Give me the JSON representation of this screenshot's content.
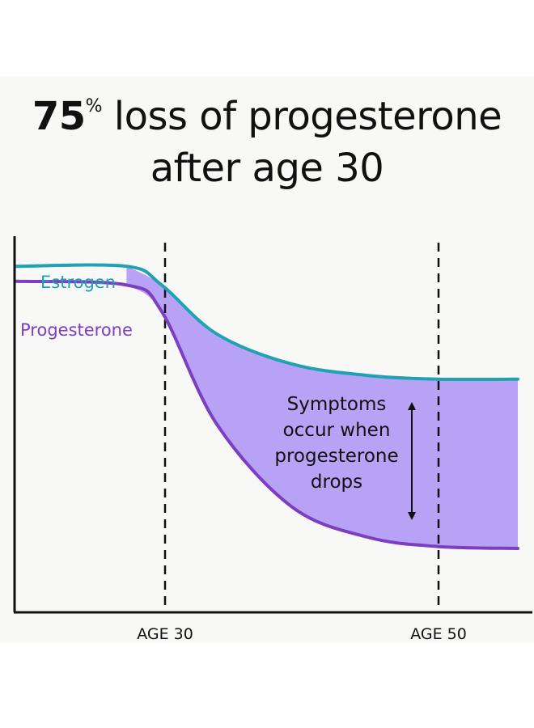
{
  "title": {
    "number": "75",
    "percent": "%",
    "line1_rest": " loss of progesterone",
    "line2": "after age 30"
  },
  "colors": {
    "estrogen": "#1fa3b0",
    "progesterone": "#7b3fbf",
    "fill": "#b8a2f5",
    "axis": "#111111",
    "background": "#f8f8f6"
  },
  "chart_data": {
    "type": "line",
    "xlabel": "",
    "ylabel": "",
    "x_markers": [
      "AGE 30",
      "AGE 50"
    ],
    "series": [
      {
        "name": "Estrogen",
        "color": "#1fa3b0",
        "x": [
          0,
          0.22,
          0.29,
          0.4,
          0.55,
          0.7,
          0.84,
          1.0
        ],
        "y": [
          0.92,
          0.92,
          0.87,
          0.74,
          0.66,
          0.63,
          0.62,
          0.62
        ]
      },
      {
        "name": "Progesterone",
        "color": "#7b3fbf",
        "x": [
          0,
          0.22,
          0.29,
          0.4,
          0.55,
          0.7,
          0.84,
          1.0
        ],
        "y": [
          0.88,
          0.87,
          0.8,
          0.5,
          0.28,
          0.2,
          0.175,
          0.17
        ]
      }
    ],
    "annotation": {
      "lines": [
        "Symptoms",
        "occur when",
        "progesterone",
        "drops"
      ],
      "arrow": "double-vertical"
    },
    "grid": false
  }
}
